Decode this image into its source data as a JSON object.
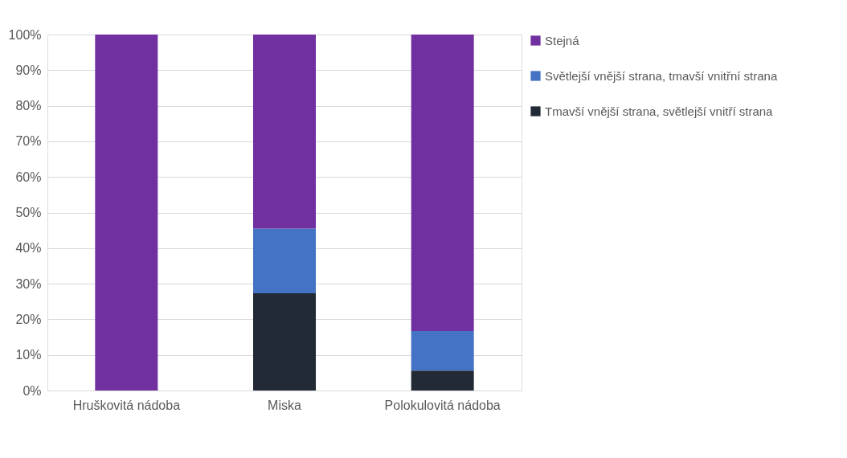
{
  "chart_data": {
    "type": "bar",
    "stacked": true,
    "categories": [
      "Hruškovitá nádoba",
      "Miska",
      "Polokulovitá nádoba"
    ],
    "series": [
      {
        "name": "Tmavší vnější strana, světlejší vnitří strana",
        "color": "#222a35",
        "values": [
          0,
          27.3,
          5.6
        ]
      },
      {
        "name": "Světlejší vnější strana, tmavší vnitřní strana",
        "color": "#4472c4",
        "values": [
          0,
          18.2,
          11.1
        ]
      },
      {
        "name": "Stejná",
        "color": "#7030a0",
        "values": [
          100,
          54.5,
          83.3
        ]
      }
    ],
    "ylim": [
      0,
      100
    ],
    "yticks": [
      {
        "value": 0,
        "label": "0%"
      },
      {
        "value": 10,
        "label": "10%"
      },
      {
        "value": 20,
        "label": "20%"
      },
      {
        "value": 30,
        "label": "30%"
      },
      {
        "value": 40,
        "label": "40%"
      },
      {
        "value": 50,
        "label": "50%"
      },
      {
        "value": 60,
        "label": "60%"
      },
      {
        "value": 70,
        "label": "70%"
      },
      {
        "value": 80,
        "label": "80%"
      },
      {
        "value": 90,
        "label": "90%"
      },
      {
        "value": 100,
        "label": "100%"
      }
    ],
    "grid": "y",
    "legend": "right"
  }
}
